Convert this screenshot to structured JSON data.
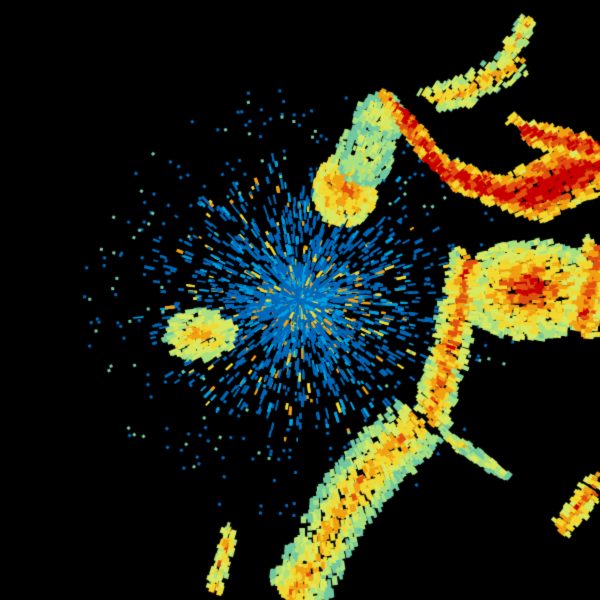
{
  "background": "#000000",
  "palette": {
    "blue": "#0068b8",
    "light_blue": "#00a0e0",
    "cyan_green": "#70c8a0",
    "pale_green": "#a8e080",
    "yellow_green": "#d8e860",
    "yellow": "#f0d830",
    "orange": "#f0a010",
    "red_orange": "#e05010",
    "red": "#c80000"
  }
}
